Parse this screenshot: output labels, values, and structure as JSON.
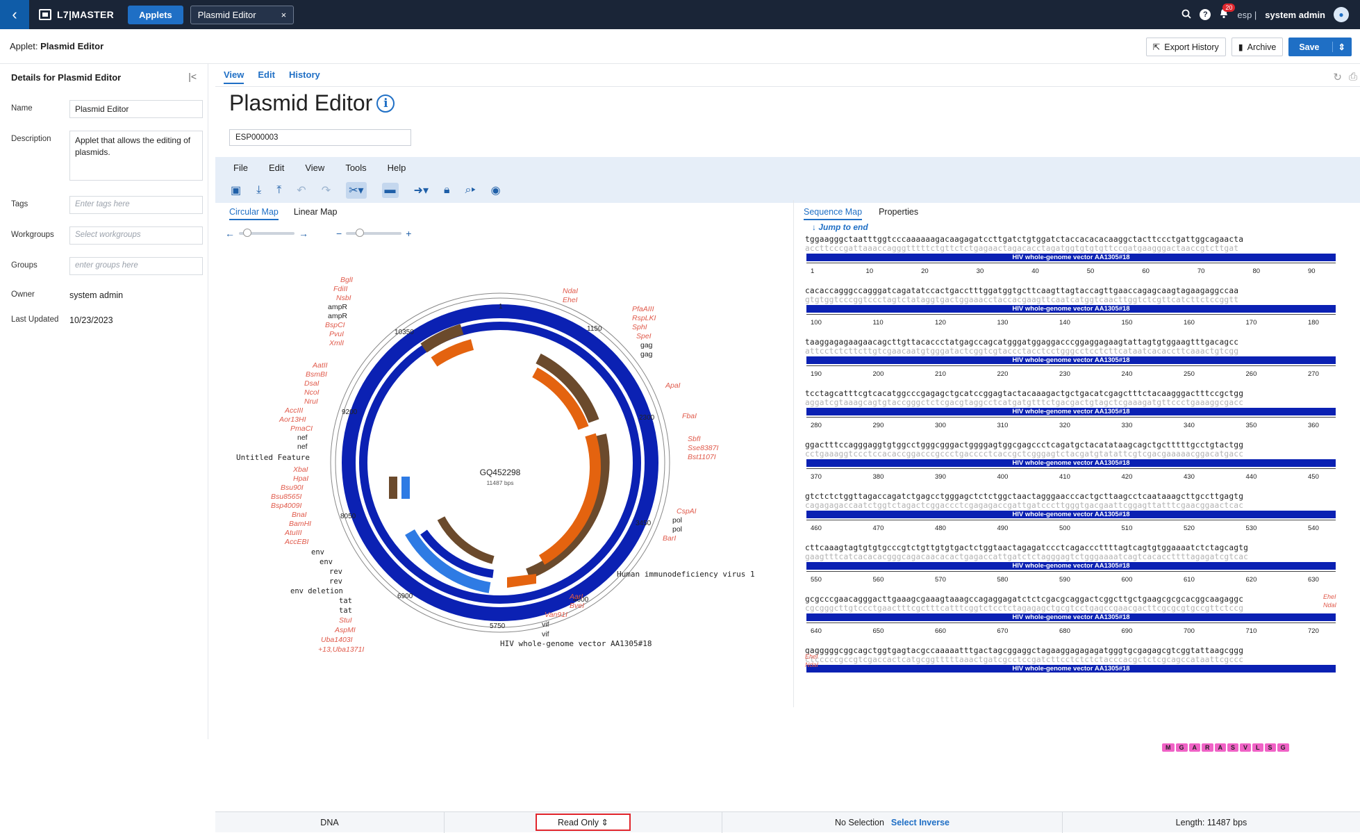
{
  "topbar": {
    "brand": "L7|MASTER",
    "applets_button": "Applets",
    "open_tab": "Plasmid Editor",
    "close_glyph": "×",
    "notification_count": "20",
    "lang": "esp |",
    "user": "system admin",
    "icons": [
      "chevron-left-icon",
      "search-icon",
      "help-icon",
      "bell-icon",
      "user-icon"
    ]
  },
  "subheader": {
    "prefix": "Applet:",
    "title": "Plasmid Editor",
    "export_history": "Export History",
    "archive": "Archive",
    "save": "Save"
  },
  "details": {
    "title": "Details for Plasmid Editor",
    "name_label": "Name",
    "name_value": "Plasmid Editor",
    "description_label": "Description",
    "description_value": "Applet that allows the editing of plasmids.",
    "tags_label": "Tags",
    "tags_placeholder": "Enter tags here",
    "workgroups_label": "Workgroups",
    "workgroups_placeholder": "Select workgroups",
    "groups_label": "Groups",
    "groups_placeholder": "enter groups here",
    "owner_label": "Owner",
    "owner_value": "system admin",
    "updated_label": "Last Updated",
    "updated_value": "10/23/2023"
  },
  "main": {
    "tabs": [
      {
        "label": "View"
      },
      {
        "label": "Edit"
      },
      {
        "label": "History"
      }
    ],
    "page_title": "Plasmid Editor",
    "info_glyph": "i",
    "id_value": "ESP000003"
  },
  "editor": {
    "menu": [
      "File",
      "Edit",
      "View",
      "Tools",
      "Help"
    ],
    "map_tabs": [
      "Circular Map",
      "Linear Map"
    ],
    "seq_tabs": [
      "Sequence Map",
      "Properties"
    ],
    "jump_to_end": "Jump to end",
    "plasmid_name": "GQ452298",
    "plasmid_length": "11487 bps",
    "ring_ticks": [
      "1",
      "1150",
      "2300",
      "3450",
      "4600",
      "5750",
      "6900",
      "8050",
      "9200",
      "10350"
    ],
    "feature_label": "HIV whole-genome vector AA1305#18",
    "virus_label": "Human immunodeficiency virus 1",
    "untitled": "Untitled Feature",
    "labels_top_left": [
      "BglI",
      "FdiII",
      "NsbI",
      "ampR",
      "ampR",
      "BspCI",
      "PvuI",
      "XmlI"
    ],
    "labels_left": [
      "AatII",
      "BsmBI",
      "DsaI",
      "NcoI",
      "NruI",
      "AccIII",
      "Aor13HI",
      "PmaCI",
      "nef",
      "nef"
    ],
    "labels_left2": [
      "XbaI",
      "HpaI",
      "Bsu90I",
      "Bsu8565I",
      "Bsp4009I",
      "BnaI",
      "BamHI",
      "AtuIII",
      "AccEBI"
    ],
    "labels_bottom_left": [
      "env",
      "env",
      "rev",
      "rev",
      "env deletion",
      "tat",
      "tat",
      "StuI",
      "AspMI",
      "Uba1403I",
      "+13,Uba1371I"
    ],
    "labels_top_right": [
      "NdaI",
      "EheI"
    ],
    "labels_right": [
      "PfaAIII",
      "RspLKI",
      "SphI",
      "SpeI",
      "gag",
      "gag"
    ],
    "labels_right2": [
      "ApaI",
      "FbaI",
      "SbfI",
      "Sse8387I",
      "Bst1107I",
      "CspAI",
      "pol",
      "pol",
      "BarI"
    ],
    "labels_bottom_right": [
      "AarI",
      "BveI",
      "Van91I",
      "vif",
      "vif"
    ],
    "sequence_rows": [
      {
        "top": "tggaagggctaatttggtcccaaaaaagacaagagatccttgatctgtggatctaccacacacaaggctacttccctgattggcagaacta",
        "bottom": "accttcccgattaaaccagggtttttctgttctctgagaactagacacctagatggtgtgtgttccgatgaagggactaaccgtcttgat",
        "ticks": [
          "1",
          "10",
          "20",
          "30",
          "40",
          "50",
          "60",
          "70",
          "80",
          "90"
        ]
      },
      {
        "top": "cacaccagggccagggatcagatatccactgacctttggatggtgcttcaagttagtaccagttgaaccagagcaagtagaagaggccaa",
        "bottom": "gtgtggtcccggtccctagtctataggtgactggaaacctaccacgaagttcaatcatggtcaacttggtctcgttcatcttctccggtt",
        "ticks": [
          "100",
          "110",
          "120",
          "130",
          "140",
          "150",
          "160",
          "170",
          "180"
        ]
      },
      {
        "top": "taaggagagaagaacagcttgttacaccctatgagccagcatgggatggaggacccggaggagaagtattagtgtggaagtttgacagcc",
        "bottom": "attcctctcttcttgtcgaacaatgtgggatactcggtcgtaccctacctcctgggcctcctcttcataatcacaccttcaaactgtcgg",
        "ticks": [
          "190",
          "200",
          "210",
          "220",
          "230",
          "240",
          "250",
          "260",
          "270"
        ]
      },
      {
        "top": "tcctagcatttcgtcacatggcccgagagctgcatccggagtactacaaagactgctgacatcgagctttctacaagggactttccgctgg",
        "bottom": "aggatcgtaaagcagtgtaccgggctctcgacgtaggcctcatgatgtttctgacgactgtagctcgaaagatgttccctgaaaggcgacc",
        "ticks": [
          "280",
          "290",
          "300",
          "310",
          "320",
          "330",
          "340",
          "350",
          "360"
        ]
      },
      {
        "top": "ggactttccagggaggtgtggcctgggcgggactggggagtggcgagccctcagatgctacatataagcagctgctttttgcctgtactgg",
        "bottom": "cctgaaaggtccctccacaccggacccgccctgacccctcaccgctcgggagtctacgatgtatattcgtcgacgaaaaacggacatgacc",
        "ticks": [
          "370",
          "380",
          "390",
          "400",
          "410",
          "420",
          "430",
          "440",
          "450"
        ]
      },
      {
        "top": "gtctctctggttagaccagatctgagcctgggagctctctggctaactagggaacccactgcttaagcctcaataaagcttgccttgagtg",
        "bottom": "cagagagaccaatctggtctagactcggaccctcgagagaccgattgatcccttgggtgacgaattcggagttatttcgaacggaactcac",
        "ticks": [
          "460",
          "470",
          "480",
          "490",
          "500",
          "510",
          "520",
          "530",
          "540"
        ]
      },
      {
        "top": "cttcaaagtagtgtgtgcccgtctgttgtgtgactctggtaactagagatccctcagacccttttagtcagtgtggaaaatctctagcagtg",
        "bottom": "gaagtttcatcacacacgggcagacaacacactgagaccattgatctctagggagtctgggaaaatcagtcacaccttttagagatcgtcac",
        "ticks": [
          "550",
          "560",
          "570",
          "580",
          "590",
          "600",
          "610",
          "620",
          "630"
        ]
      },
      {
        "top": "gcgcccgaacagggacttgaaagcgaaagtaaagccagaggagatctctcgacgcaggactcggcttgctgaagcgcgcacggcaagaggc",
        "bottom": "cgcgggcttgtccctgaactttcgctttcatttcggtctcctctagagagctgcgtcctgagccgaacgacttcgcgcgtgccgttctccg",
        "ticks": [
          "640",
          "650",
          "660",
          "670",
          "680",
          "690",
          "700",
          "710",
          "720"
        ]
      },
      {
        "top": "gagggggcggcagctggtgagtacgccaaaaatttgactagcggaggctagaaggagagagatgggtgcgagagcgtcggtattaagcggg",
        "bottom": "ctcccccgccgtcgaccactcatgcggtttttaaactgatcgcctccgatcttcctctctctacccacgctctcgcagccataattcgccc",
        "ticks": []
      }
    ],
    "seq_enzymes_top": [
      "EheI",
      "NdaI"
    ],
    "seq_enzymes_left": [
      "EheI",
      "NdaI"
    ],
    "amino_acids": [
      "M",
      "G",
      "A",
      "R",
      "A",
      "S",
      "V",
      "L",
      "S",
      "G"
    ]
  },
  "status": {
    "type": "DNA",
    "mode": "Read Only",
    "selection": "No Selection",
    "select_inverse": "Select Inverse",
    "length": "Length: 11487 bps"
  },
  "colors": {
    "accent": "#1f6fc5",
    "backbone": "#0b21b3",
    "feature_orange": "#e4630f",
    "feature_brown": "#6b4a2c",
    "enzyme": "#e0594a"
  }
}
